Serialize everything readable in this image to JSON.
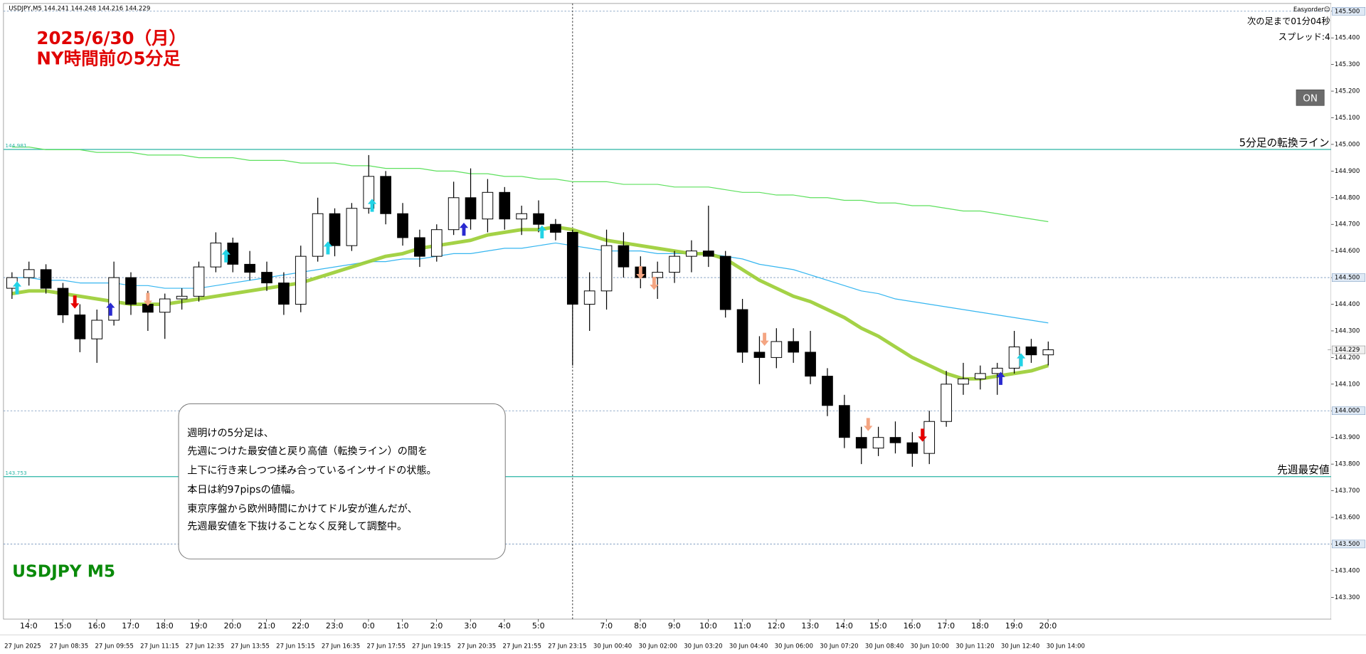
{
  "header": "USDJPY,M5  144.241 144.248 144.216 144.229",
  "top_right": {
    "tool": "Easyorder☺",
    "countdown": "次の足まで01分04秒",
    "spread": "スプレッド:4",
    "button": "ON"
  },
  "annotations": {
    "title_lines": [
      "2025/6/30（月）",
      "NY時間前の5分足"
    ],
    "symbol": "USDJPY M5",
    "note_lines": [
      "週明けの5分足は、",
      "先週につけた最安値と戻り高値（転換ライン）の間を",
      "上下に行き来しつつ揉み合っているインサイドの状態。",
      "本日は約97pipsの値幅。",
      "東京序盤から欧州時間にかけてドル安が進んだが、",
      "先週最安値を下抜けることなく反発して調整中。"
    ]
  },
  "chart_data": {
    "type": "candlestick",
    "open": [
      144.46,
      144.5,
      144.53,
      144.46,
      144.36,
      144.27,
      144.34,
      144.5,
      144.4,
      144.37,
      144.42,
      144.43,
      144.54,
      144.63,
      144.55,
      144.52,
      144.48,
      144.4,
      144.58,
      144.74,
      144.62,
      144.76,
      144.88,
      144.74,
      144.65,
      144.58,
      144.68,
      144.8,
      144.72,
      144.82,
      144.72,
      144.74,
      144.7,
      144.67,
      144.4,
      144.45,
      144.62,
      144.54,
      144.5,
      144.52,
      144.58,
      144.6,
      144.58,
      144.38,
      144.22,
      144.2,
      144.26,
      144.22,
      144.13,
      144.02,
      143.9,
      143.86,
      143.9,
      143.88,
      143.84,
      143.96,
      144.1,
      144.12,
      144.14,
      144.16,
      144.24,
      144.21
    ],
    "high": [
      144.52,
      144.56,
      144.55,
      144.48,
      144.4,
      144.38,
      144.56,
      144.52,
      144.45,
      144.44,
      144.46,
      144.56,
      144.67,
      144.65,
      144.6,
      144.56,
      144.52,
      144.62,
      144.8,
      144.76,
      144.78,
      144.96,
      144.9,
      144.78,
      144.68,
      144.7,
      144.86,
      144.91,
      144.87,
      144.84,
      144.77,
      144.79,
      144.72,
      144.68,
      144.52,
      144.68,
      144.67,
      144.58,
      144.56,
      144.6,
      144.64,
      144.77,
      144.6,
      144.42,
      144.28,
      144.31,
      144.31,
      144.3,
      144.16,
      144.06,
      143.94,
      143.94,
      143.96,
      143.92,
      144.0,
      144.15,
      144.18,
      144.17,
      144.18,
      144.3,
      144.27,
      144.26
    ],
    "low": [
      144.42,
      144.47,
      144.44,
      144.33,
      144.22,
      144.18,
      144.32,
      144.36,
      144.3,
      144.27,
      144.38,
      144.41,
      144.52,
      144.52,
      144.49,
      144.45,
      144.36,
      144.37,
      144.56,
      144.58,
      144.6,
      144.74,
      144.7,
      144.62,
      144.54,
      144.56,
      144.66,
      144.68,
      144.67,
      144.68,
      144.66,
      144.67,
      144.64,
      144.17,
      144.3,
      144.38,
      144.5,
      144.46,
      144.42,
      144.48,
      144.52,
      144.54,
      144.35,
      144.18,
      144.1,
      144.16,
      144.18,
      144.1,
      143.98,
      143.86,
      143.8,
      143.83,
      143.84,
      143.79,
      143.8,
      143.94,
      144.06,
      144.08,
      144.06,
      144.14,
      144.18,
      144.17
    ],
    "close": [
      144.5,
      144.53,
      144.46,
      144.36,
      144.27,
      144.34,
      144.5,
      144.4,
      144.37,
      144.42,
      144.43,
      144.54,
      144.63,
      144.55,
      144.52,
      144.48,
      144.4,
      144.58,
      144.74,
      144.62,
      144.76,
      144.88,
      144.74,
      144.65,
      144.58,
      144.68,
      144.8,
      144.72,
      144.82,
      144.72,
      144.74,
      144.7,
      144.67,
      144.4,
      144.45,
      144.62,
      144.54,
      144.5,
      144.52,
      144.58,
      144.6,
      144.58,
      144.38,
      144.22,
      144.2,
      144.26,
      144.22,
      144.13,
      144.02,
      143.9,
      143.86,
      143.9,
      143.88,
      143.84,
      143.96,
      144.1,
      144.12,
      144.14,
      144.16,
      144.24,
      144.21,
      144.229
    ],
    "ylim": [
      143.218,
      145.529
    ],
    "yticks": [
      {
        "value": 143.3,
        "label": "143.300"
      },
      {
        "value": 143.4,
        "label": "143.400"
      },
      {
        "value": 143.5,
        "label": "143.500"
      },
      {
        "value": 143.6,
        "label": "143.600"
      },
      {
        "value": 143.7,
        "label": "143.700"
      },
      {
        "value": 143.8,
        "label": "143.800"
      },
      {
        "value": 143.9,
        "label": "143.900"
      },
      {
        "value": 144.0,
        "label": "144.000"
      },
      {
        "value": 144.1,
        "label": "144.100"
      },
      {
        "value": 144.2,
        "label": "144.200"
      },
      {
        "value": 144.3,
        "label": "144.300"
      },
      {
        "value": 144.4,
        "label": "144.400"
      },
      {
        "value": 144.5,
        "label": "144.500"
      },
      {
        "value": 144.6,
        "label": "144.600"
      },
      {
        "value": 144.7,
        "label": "144.700"
      },
      {
        "value": 144.8,
        "label": "144.800"
      },
      {
        "value": 144.9,
        "label": "144.900"
      },
      {
        "value": 145.0,
        "label": "145.000"
      },
      {
        "value": 145.1,
        "label": "145.100"
      },
      {
        "value": 145.2,
        "label": "145.200"
      },
      {
        "value": 145.3,
        "label": "145.300"
      },
      {
        "value": 145.4,
        "label": "145.400"
      },
      {
        "value": 145.5,
        "label": "145.500"
      }
    ],
    "hour_labels": [
      "14:0",
      "15:0",
      "16:0",
      "17:0",
      "18:0",
      "19:0",
      "20:0",
      "21:0",
      "22:0",
      "23:0",
      "0:0",
      "1:0",
      "2:0",
      "3:0",
      "4:0",
      "5:0",
      null,
      "7:0",
      "8:0",
      "9:0",
      "10:0",
      "11:0",
      "12:0",
      "13:0",
      "14:0",
      "15:0",
      "16:0",
      "17:0",
      "18:0",
      "19:0",
      "20:0"
    ],
    "date_labels": [
      "27 Jun 2025",
      "27 Jun 08:35",
      "27 Jun 09:55",
      "27 Jun 11:15",
      "27 Jun 12:35",
      "27 Jun 13:55",
      "27 Jun 15:15",
      "27 Jun 16:35",
      "27 Jun 17:55",
      "27 Jun 19:15",
      "27 Jun 20:35",
      "27 Jun 21:55",
      "27 Jun 23:15",
      "30 Jun 00:40",
      "30 Jun 02:00",
      "30 Jun 03:20",
      "30 Jun 04:40",
      "30 Jun 06:00",
      "30 Jun 07:20",
      "30 Jun 08:40",
      "30 Jun 10:00",
      "30 Jun 11:20",
      "30 Jun 12:40",
      "30 Jun 14:00"
    ],
    "separator_index": 33,
    "overlays": [
      {
        "color": "#5ee05e",
        "style": "thin",
        "values": [
          144.99,
          144.99,
          144.98,
          144.98,
          144.98,
          144.97,
          144.97,
          144.97,
          144.96,
          144.96,
          144.96,
          144.95,
          144.95,
          144.95,
          144.94,
          144.94,
          144.94,
          144.93,
          144.93,
          144.93,
          144.92,
          144.92,
          144.91,
          144.91,
          144.91,
          144.9,
          144.9,
          144.89,
          144.89,
          144.88,
          144.88,
          144.87,
          144.87,
          144.86,
          144.86,
          144.86,
          144.85,
          144.85,
          144.85,
          144.84,
          144.84,
          144.84,
          144.83,
          144.82,
          144.82,
          144.81,
          144.81,
          144.8,
          144.8,
          144.79,
          144.79,
          144.78,
          144.78,
          144.77,
          144.77,
          144.76,
          144.75,
          144.75,
          144.74,
          144.73,
          144.72,
          144.71
        ]
      },
      {
        "color": "#36b6f0",
        "style": "thin",
        "values": [
          144.5,
          144.5,
          144.49,
          144.49,
          144.48,
          144.48,
          144.48,
          144.47,
          144.47,
          144.46,
          144.46,
          144.46,
          144.47,
          144.48,
          144.49,
          144.5,
          144.51,
          144.52,
          144.53,
          144.54,
          144.55,
          144.56,
          144.56,
          144.57,
          144.57,
          144.58,
          144.59,
          144.59,
          144.6,
          144.61,
          144.61,
          144.62,
          144.63,
          144.62,
          144.61,
          144.6,
          144.6,
          144.6,
          144.59,
          144.59,
          144.59,
          144.59,
          144.58,
          144.57,
          144.55,
          144.54,
          144.53,
          144.51,
          144.49,
          144.47,
          144.45,
          144.44,
          144.42,
          144.41,
          144.4,
          144.39,
          144.38,
          144.37,
          144.36,
          144.35,
          144.34,
          144.33
        ]
      },
      {
        "color": "#9acd32",
        "style": "thick",
        "values": [
          144.44,
          144.45,
          144.45,
          144.44,
          144.43,
          144.42,
          144.41,
          144.4,
          144.4,
          144.4,
          144.41,
          144.42,
          144.43,
          144.44,
          144.45,
          144.46,
          144.47,
          144.48,
          144.5,
          144.52,
          144.54,
          144.56,
          144.58,
          144.59,
          144.61,
          144.62,
          144.63,
          144.64,
          144.66,
          144.67,
          144.68,
          144.68,
          144.69,
          144.68,
          144.66,
          144.64,
          144.63,
          144.62,
          144.61,
          144.6,
          144.59,
          144.59,
          144.57,
          144.53,
          144.49,
          144.46,
          144.43,
          144.41,
          144.38,
          144.35,
          144.31,
          144.28,
          144.24,
          144.2,
          144.17,
          144.14,
          144.12,
          144.12,
          144.13,
          144.14,
          144.15,
          144.17
        ]
      }
    ],
    "hlines": [
      145.5,
      144.5,
      144.0,
      143.5
    ],
    "levels": [
      {
        "value": 144.981,
        "label": "144.981",
        "text": "5分足の転換ライン"
      },
      {
        "value": 143.753,
        "label": "143.753",
        "text": "先週最安値"
      }
    ],
    "last_price": 144.229,
    "signals": [
      {
        "index": 0.3,
        "price": 144.46,
        "dir": "up",
        "color": "#22d3e6"
      },
      {
        "index": 3.7,
        "price": 144.41,
        "dir": "down",
        "color": "#e60000"
      },
      {
        "index": 5.8,
        "price": 144.38,
        "dir": "up",
        "color": "#2a2ad0"
      },
      {
        "index": 8.0,
        "price": 144.42,
        "dir": "down",
        "color": "#f4a582"
      },
      {
        "index": 12.6,
        "price": 144.58,
        "dir": "up",
        "color": "#22d3e6"
      },
      {
        "index": 18.6,
        "price": 144.61,
        "dir": "up",
        "color": "#22d3e6"
      },
      {
        "index": 21.2,
        "price": 144.77,
        "dir": "up",
        "color": "#22d3e6"
      },
      {
        "index": 26.6,
        "price": 144.68,
        "dir": "up",
        "color": "#2a2ad0"
      },
      {
        "index": 31.2,
        "price": 144.67,
        "dir": "up",
        "color": "#22d3e6"
      },
      {
        "index": 37.0,
        "price": 144.52,
        "dir": "down",
        "color": "#f4a582"
      },
      {
        "index": 37.8,
        "price": 144.48,
        "dir": "down",
        "color": "#f4a582"
      },
      {
        "index": 44.3,
        "price": 144.27,
        "dir": "down",
        "color": "#f4a582"
      },
      {
        "index": 50.4,
        "price": 143.95,
        "dir": "down",
        "color": "#f4a582"
      },
      {
        "index": 53.6,
        "price": 143.91,
        "dir": "down",
        "color": "#e60000"
      },
      {
        "index": 58.2,
        "price": 144.12,
        "dir": "up",
        "color": "#2a2ad0"
      },
      {
        "index": 59.4,
        "price": 144.19,
        "dir": "up",
        "color": "#22d3e6"
      }
    ]
  }
}
